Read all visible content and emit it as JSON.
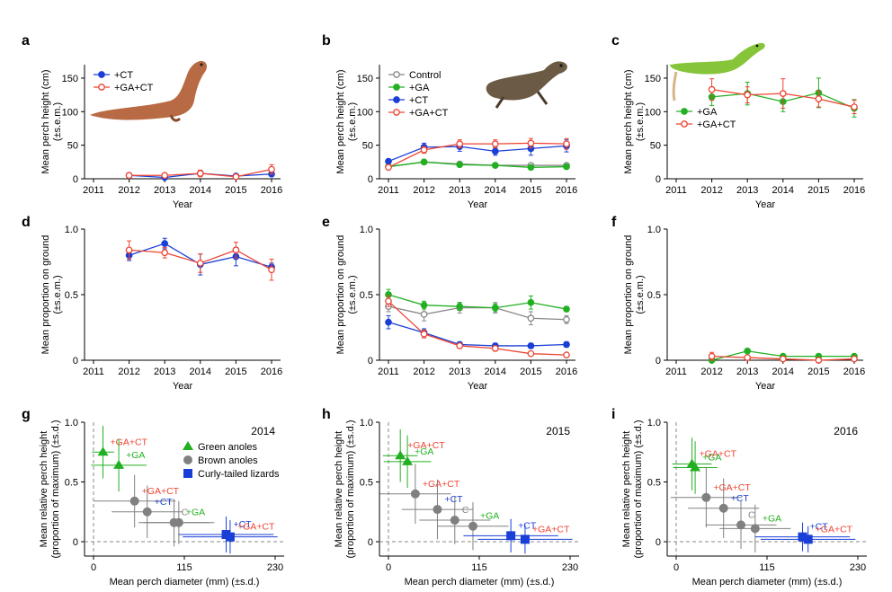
{
  "colors": {
    "Control": "#888888",
    "GA": "#22b022",
    "CT": "#1a3fd6",
    "GA+CT": "#ee4433",
    "green_anoles": "#22b022",
    "brown_anoles": "#808080",
    "curly_tailed": "#1a3fd6",
    "axis": "#000000"
  },
  "chart_data": [
    {
      "panel": "a",
      "type": "line",
      "ylabel": "Mean perch height (cm)",
      "ylabel2": "(±s.e.m.)",
      "xlabel": "Year",
      "x": [
        2011,
        2012,
        2013,
        2014,
        2015,
        2016
      ],
      "ylim": [
        0,
        170
      ],
      "yticks": [
        0,
        50,
        100,
        150
      ],
      "legend": [
        "+CT",
        "+GA+CT"
      ],
      "legend_position": "top-left",
      "photo": "curly-tailed-lizard",
      "series": [
        {
          "name": "+CT",
          "key": "CT",
          "open": false,
          "x": [
            2012,
            2013,
            2014,
            2015,
            2016
          ],
          "y": [
            5,
            2,
            8,
            4,
            7
          ],
          "err": [
            1,
            1,
            2,
            1,
            2
          ]
        },
        {
          "name": "+GA+CT",
          "key": "GA+CT",
          "open": true,
          "x": [
            2012,
            2013,
            2014,
            2015,
            2016
          ],
          "y": [
            5,
            5,
            8,
            3,
            14
          ],
          "err": [
            2,
            2,
            5,
            2,
            7
          ]
        }
      ]
    },
    {
      "panel": "b",
      "type": "line",
      "ylabel": "Mean perch height (cm)",
      "ylabel2": "(±s.e.m.)",
      "xlabel": "Year",
      "x": [
        2011,
        2012,
        2013,
        2014,
        2015,
        2016
      ],
      "ylim": [
        0,
        170
      ],
      "yticks": [
        0,
        50,
        100,
        150
      ],
      "legend": [
        "Control",
        "+GA",
        "+CT",
        "+GA+CT"
      ],
      "legend_position": "top-left",
      "photo": "brown-anole",
      "series": [
        {
          "name": "Control",
          "key": "Control",
          "open": true,
          "x": [
            2011,
            2012,
            2013,
            2014,
            2015,
            2016
          ],
          "y": [
            18,
            25,
            22,
            20,
            20,
            20
          ],
          "err": [
            2,
            2,
            2,
            2,
            2,
            2
          ]
        },
        {
          "name": "+GA",
          "key": "GA",
          "open": false,
          "x": [
            2011,
            2012,
            2013,
            2014,
            2015,
            2016
          ],
          "y": [
            18,
            25,
            21,
            20,
            17,
            18
          ],
          "err": [
            2,
            2,
            2,
            2,
            2,
            2
          ]
        },
        {
          "name": "+CT",
          "key": "CT",
          "open": false,
          "x": [
            2011,
            2012,
            2013,
            2014,
            2015,
            2016
          ],
          "y": [
            26,
            47,
            48,
            41,
            45,
            49
          ],
          "err": [
            2,
            6,
            7,
            6,
            10,
            9
          ]
        },
        {
          "name": "+GA+CT",
          "key": "GA+CT",
          "open": true,
          "x": [
            2011,
            2012,
            2013,
            2014,
            2015,
            2016
          ],
          "y": [
            17,
            43,
            52,
            52,
            53,
            52
          ],
          "err": [
            2,
            5,
            6,
            6,
            7,
            8
          ]
        }
      ]
    },
    {
      "panel": "c",
      "type": "line",
      "ylabel": "Mean perch height (cm)",
      "ylabel2": "(±s.e.m.)",
      "xlabel": "Year",
      "x": [
        2011,
        2012,
        2013,
        2014,
        2015,
        2016
      ],
      "ylim": [
        0,
        170
      ],
      "yticks": [
        0,
        50,
        100,
        150
      ],
      "legend": [
        "+GA",
        "+GA+CT"
      ],
      "legend_position": "middle-left",
      "photo": "green-anole",
      "series": [
        {
          "name": "+GA",
          "key": "GA",
          "open": false,
          "x": [
            2012,
            2013,
            2014,
            2015,
            2016
          ],
          "y": [
            122,
            127,
            115,
            128,
            105
          ],
          "err": [
            13,
            17,
            15,
            22,
            13
          ]
        },
        {
          "name": "+GA+CT",
          "key": "GA+CT",
          "open": true,
          "x": [
            2012,
            2013,
            2014,
            2015,
            2016
          ],
          "y": [
            133,
            125,
            127,
            119,
            107
          ],
          "err": [
            16,
            12,
            22,
            12,
            10
          ]
        }
      ]
    },
    {
      "panel": "d",
      "type": "line",
      "ylabel": "Mean proportion on ground",
      "ylabel2": "(±s.e.m.)",
      "xlabel": "Year",
      "x": [
        2011,
        2012,
        2013,
        2014,
        2015,
        2016
      ],
      "ylim": [
        0,
        1.0
      ],
      "yticks": [
        0,
        0.5,
        1.0
      ],
      "series": [
        {
          "name": "+CT",
          "key": "CT",
          "open": false,
          "x": [
            2012,
            2013,
            2014,
            2015,
            2016
          ],
          "y": [
            0.8,
            0.89,
            0.73,
            0.79,
            0.71
          ],
          "err": [
            0.04,
            0.04,
            0.08,
            0.07,
            0.03
          ]
        },
        {
          "name": "+GA+CT",
          "key": "GA+CT",
          "open": true,
          "x": [
            2012,
            2013,
            2014,
            2015,
            2016
          ],
          "y": [
            0.84,
            0.82,
            0.74,
            0.84,
            0.69
          ],
          "err": [
            0.07,
            0.04,
            0.07,
            0.06,
            0.08
          ]
        }
      ]
    },
    {
      "panel": "e",
      "type": "line",
      "ylabel": "Mean proportion on ground",
      "ylabel2": "(±s.e.m.)",
      "xlabel": "Year",
      "x": [
        2011,
        2012,
        2013,
        2014,
        2015,
        2016
      ],
      "ylim": [
        0,
        1.0
      ],
      "yticks": [
        0,
        0.5,
        1.0
      ],
      "series": [
        {
          "name": "Control",
          "key": "Control",
          "open": true,
          "x": [
            2011,
            2012,
            2013,
            2014,
            2015,
            2016
          ],
          "y": [
            0.41,
            0.35,
            0.4,
            0.4,
            0.32,
            0.31
          ],
          "err": [
            0.04,
            0.05,
            0.04,
            0.04,
            0.05,
            0.03
          ]
        },
        {
          "name": "+GA",
          "key": "GA",
          "open": false,
          "x": [
            2011,
            2012,
            2013,
            2014,
            2015,
            2016
          ],
          "y": [
            0.5,
            0.42,
            0.41,
            0.4,
            0.44,
            0.39
          ],
          "err": [
            0.04,
            0.03,
            0.03,
            0.03,
            0.05,
            0.02
          ]
        },
        {
          "name": "+CT",
          "key": "CT",
          "open": false,
          "x": [
            2011,
            2012,
            2013,
            2014,
            2015,
            2016
          ],
          "y": [
            0.29,
            0.21,
            0.12,
            0.11,
            0.11,
            0.12
          ],
          "err": [
            0.05,
            0.03,
            0.02,
            0.02,
            0.02,
            0.02
          ]
        },
        {
          "name": "+GA+CT",
          "key": "GA+CT",
          "open": true,
          "x": [
            2011,
            2012,
            2013,
            2014,
            2015,
            2016
          ],
          "y": [
            0.45,
            0.2,
            0.11,
            0.09,
            0.05,
            0.04
          ],
          "err": [
            0.04,
            0.03,
            0.02,
            0.02,
            0.01,
            0.01
          ]
        }
      ]
    },
    {
      "panel": "f",
      "type": "line",
      "ylabel": "Mean proportion on ground",
      "ylabel2": "(±s.e.m.)",
      "xlabel": "Year",
      "x": [
        2011,
        2012,
        2013,
        2014,
        2015,
        2016
      ],
      "ylim": [
        0,
        1.0
      ],
      "yticks": [
        0,
        0.5,
        1.0
      ],
      "series": [
        {
          "name": "+GA",
          "key": "GA",
          "open": false,
          "x": [
            2012,
            2013,
            2014,
            2015,
            2016
          ],
          "y": [
            0.0,
            0.07,
            0.03,
            0.03,
            0.03
          ],
          "err": [
            0.01,
            0.01,
            0.01,
            0.01,
            0.01
          ]
        },
        {
          "name": "+GA+CT",
          "key": "GA+CT",
          "open": true,
          "x": [
            2012,
            2013,
            2014,
            2015,
            2016
          ],
          "y": [
            0.03,
            0.02,
            0.01,
            0.0,
            0.01
          ],
          "err": [
            0.03,
            0.01,
            0.01,
            0.01,
            0.01
          ]
        }
      ]
    },
    {
      "panel": "g",
      "type": "scatter",
      "year_label": "2014",
      "ylabel": "Mean relative perch height",
      "ylabel2": "(proportion of maximum) (±s.d.)",
      "xlabel": "Mean perch diameter (mm) (±s.d.)",
      "xlim": [
        -10,
        230
      ],
      "ylim": [
        -0.1,
        1.0
      ],
      "xticks": [
        0,
        115,
        230
      ],
      "yticks": [
        0,
        0.5,
        1.0
      ],
      "legend": [
        {
          "label": "Green anoles",
          "key": "green_anoles",
          "shape": "triangle"
        },
        {
          "label": "Brown anoles",
          "key": "brown_anoles",
          "shape": "circle"
        },
        {
          "label": "Curly-tailed lizards",
          "key": "curly_tailed",
          "shape": "square"
        }
      ],
      "points": [
        {
          "species": "green_anoles",
          "label": "+GA+CT",
          "label_color": "GA+CT",
          "x": 12,
          "y": 0.75,
          "xerr": 14,
          "yerr": 0.22
        },
        {
          "species": "green_anoles",
          "label": "+GA",
          "label_color": "GA",
          "x": 32,
          "y": 0.64,
          "xerr": 35,
          "yerr": 0.22
        },
        {
          "species": "brown_anoles",
          "label": "+GA+CT",
          "label_color": "GA+CT",
          "x": 52,
          "y": 0.34,
          "xerr": 52,
          "yerr": 0.22
        },
        {
          "species": "brown_anoles",
          "label": "+CT",
          "label_color": "CT",
          "x": 68,
          "y": 0.25,
          "xerr": 45,
          "yerr": 0.22
        },
        {
          "species": "brown_anoles",
          "label": "C",
          "label_color": "Control",
          "x": 102,
          "y": 0.16,
          "xerr": 45,
          "yerr": 0.2
        },
        {
          "species": "brown_anoles",
          "label": "+GA",
          "label_color": "GA",
          "x": 108,
          "y": 0.16,
          "xerr": 45,
          "yerr": 0.18
        },
        {
          "species": "curly_tailed",
          "label": "+CT",
          "label_color": "CT",
          "x": 168,
          "y": 0.06,
          "xerr": 60,
          "yerr": 0.15
        },
        {
          "species": "curly_tailed",
          "label": "+GA+CT",
          "label_color": "GA+CT",
          "x": 173,
          "y": 0.04,
          "xerr": 60,
          "yerr": 0.14
        }
      ]
    },
    {
      "panel": "h",
      "type": "scatter",
      "year_label": "2015",
      "ylabel": "Mean relative perch height",
      "ylabel2": "(proportion of maximum) (±s.d.)",
      "xlabel": "Mean perch diameter (mm) (±s.d.)",
      "xlim": [
        -10,
        230
      ],
      "ylim": [
        -0.1,
        1.0
      ],
      "xticks": [
        0,
        115,
        230
      ],
      "yticks": [
        0,
        0.5,
        1.0
      ],
      "points": [
        {
          "species": "green_anoles",
          "label": "+GA+CT",
          "label_color": "GA+CT",
          "x": 15,
          "y": 0.72,
          "xerr": 22,
          "yerr": 0.22
        },
        {
          "species": "green_anoles",
          "label": "+GA",
          "label_color": "GA",
          "x": 24,
          "y": 0.67,
          "xerr": 30,
          "yerr": 0.22
        },
        {
          "species": "brown_anoles",
          "label": "+GA+CT",
          "label_color": "GA+CT",
          "x": 34,
          "y": 0.4,
          "xerr": 45,
          "yerr": 0.25
        },
        {
          "species": "brown_anoles",
          "label": "+CT",
          "label_color": "CT",
          "x": 62,
          "y": 0.27,
          "xerr": 45,
          "yerr": 0.25
        },
        {
          "species": "brown_anoles",
          "label": "C",
          "label_color": "Control",
          "x": 84,
          "y": 0.18,
          "xerr": 45,
          "yerr": 0.2
        },
        {
          "species": "brown_anoles",
          "label": "+GA",
          "label_color": "GA",
          "x": 107,
          "y": 0.13,
          "xerr": 45,
          "yerr": 0.2
        },
        {
          "species": "curly_tailed",
          "label": "+CT",
          "label_color": "CT",
          "x": 155,
          "y": 0.05,
          "xerr": 60,
          "yerr": 0.14
        },
        {
          "species": "curly_tailed",
          "label": "+GA+CT",
          "label_color": "GA+CT",
          "x": 173,
          "y": 0.02,
          "xerr": 60,
          "yerr": 0.12
        }
      ]
    },
    {
      "panel": "i",
      "type": "scatter",
      "year_label": "2016",
      "ylabel": "Mean relative perch height",
      "ylabel2": "(proportion of maximum) (±s.d.)",
      "xlabel": "Mean perch diameter (mm) (±s.d.)",
      "xlim": [
        -10,
        230
      ],
      "ylim": [
        -0.1,
        1.0
      ],
      "xticks": [
        0,
        115,
        230
      ],
      "yticks": [
        0,
        0.5,
        1.0
      ],
      "points": [
        {
          "species": "green_anoles",
          "label": "+GA+CT",
          "label_color": "GA+CT",
          "x": 20,
          "y": 0.65,
          "xerr": 25,
          "yerr": 0.22
        },
        {
          "species": "green_anoles",
          "label": "+GA",
          "label_color": "GA",
          "x": 24,
          "y": 0.62,
          "xerr": 28,
          "yerr": 0.22
        },
        {
          "species": "brown_anoles",
          "label": "+GA+CT",
          "label_color": "GA+CT",
          "x": 38,
          "y": 0.37,
          "xerr": 45,
          "yerr": 0.25
        },
        {
          "species": "brown_anoles",
          "label": "+CT",
          "label_color": "CT",
          "x": 60,
          "y": 0.28,
          "xerr": 45,
          "yerr": 0.25
        },
        {
          "species": "brown_anoles",
          "label": "C",
          "label_color": "Control",
          "x": 82,
          "y": 0.14,
          "xerr": 45,
          "yerr": 0.2
        },
        {
          "species": "brown_anoles",
          "label": "+GA",
          "label_color": "GA",
          "x": 100,
          "y": 0.11,
          "xerr": 45,
          "yerr": 0.2
        },
        {
          "species": "curly_tailed",
          "label": "+CT",
          "label_color": "CT",
          "x": 160,
          "y": 0.04,
          "xerr": 60,
          "yerr": 0.12
        },
        {
          "species": "curly_tailed",
          "label": "+GA+CT",
          "label_color": "GA+CT",
          "x": 167,
          "y": 0.02,
          "xerr": 60,
          "yerr": 0.11
        }
      ]
    }
  ]
}
